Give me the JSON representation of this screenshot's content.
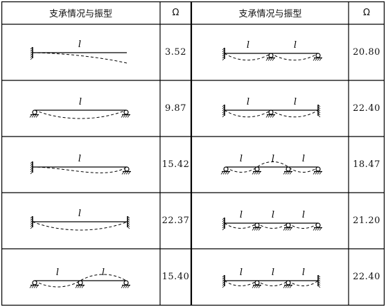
{
  "table": {
    "header": {
      "left_col": "支承情况与振型",
      "left_omega": "Ω",
      "right_col": "支承情况与振型",
      "right_omega": "Ω"
    },
    "span_label": "l",
    "rows": [
      {
        "left_value": "3.52",
        "right_value": "20.80",
        "left_case": "cantilever",
        "right_case": "fixed-pin-pin"
      },
      {
        "left_value": "9.87",
        "right_value": "22.40",
        "left_case": "pinned-pinned",
        "right_case": "fixed-pin-fixed"
      },
      {
        "left_value": "15.42",
        "right_value": "18.47",
        "left_case": "fixed-pinned",
        "right_case": "pin-pin-pin-pin"
      },
      {
        "left_value": "22.37",
        "right_value": "21.20",
        "left_case": "fixed-fixed",
        "right_case": "fixed-pin-pin-pin"
      },
      {
        "left_value": "15.40",
        "right_value": "22.40",
        "left_case": "pin-pin-pin",
        "right_case": "fixed-pin-pin-fixed"
      }
    ]
  }
}
